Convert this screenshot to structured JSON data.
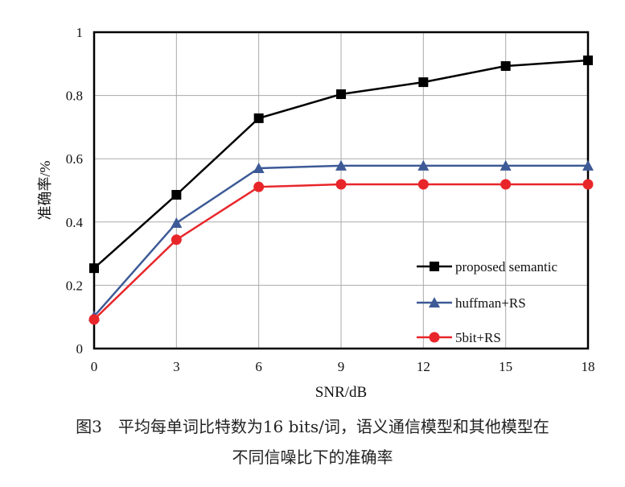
{
  "chart_data": {
    "type": "line",
    "title": "",
    "xlabel": "SNR/dB",
    "ylabel": "准确率/%",
    "x": [
      0,
      3,
      6,
      9,
      12,
      15,
      18
    ],
    "xlim": [
      0,
      18
    ],
    "ylim": [
      0,
      1
    ],
    "xticks": [
      "0",
      "3",
      "6",
      "9",
      "12",
      "15",
      "18"
    ],
    "yticks": [
      "0",
      "0.2",
      "0.4",
      "0.6",
      "0.8",
      "1"
    ],
    "grid": true,
    "legend_position": "bottom-right",
    "series": [
      {
        "name": "proposed semantic",
        "marker": "square",
        "color": "#000000",
        "values": [
          0.254,
          0.486,
          0.728,
          0.804,
          0.842,
          0.893,
          0.911
        ]
      },
      {
        "name": "huffman+RS",
        "marker": "triangle",
        "color": "#3d5a96",
        "values": [
          0.102,
          0.397,
          0.57,
          0.578,
          0.578,
          0.578,
          0.578
        ]
      },
      {
        "name": "5bit+RS",
        "marker": "circle",
        "color": "#e8262a",
        "values": [
          0.092,
          0.344,
          0.511,
          0.519,
          0.519,
          0.519,
          0.519
        ]
      }
    ]
  },
  "caption": {
    "line1": "图3　平均每单词比特数为16 bits/词，语义通信模型和其他模型在",
    "line2": "不同信噪比下的准确率"
  }
}
